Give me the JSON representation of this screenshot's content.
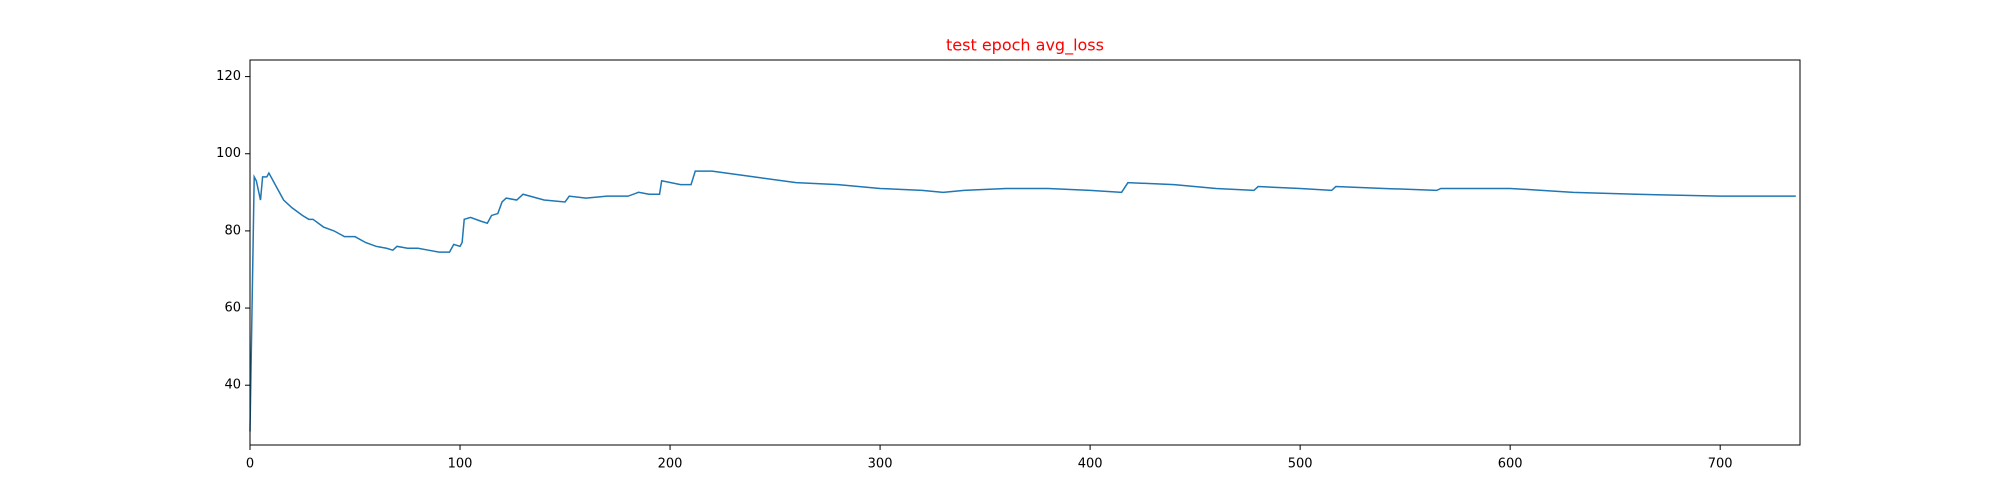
{
  "chart_data": {
    "type": "line",
    "title": "test epoch avg_loss",
    "title_color": "#ff0000",
    "x": [
      0,
      2,
      3,
      5,
      6,
      8,
      9,
      12,
      16,
      20,
      25,
      28,
      30,
      35,
      40,
      45,
      50,
      55,
      60,
      65,
      68,
      70,
      75,
      80,
      85,
      90,
      95,
      97,
      100,
      101,
      102,
      105,
      110,
      113,
      115,
      118,
      120,
      122,
      127,
      130,
      140,
      150,
      152,
      160,
      170,
      180,
      185,
      190,
      195,
      196,
      205,
      210,
      212,
      220,
      240,
      260,
      280,
      300,
      320,
      330,
      340,
      360,
      380,
      400,
      415,
      418,
      440,
      460,
      478,
      480,
      500,
      515,
      517,
      540,
      565,
      567,
      600,
      630,
      660,
      700,
      736
    ],
    "series": [
      {
        "color": "#1f77b4",
        "values": [
          28,
          94,
          93,
          88,
          94,
          94,
          95,
          92,
          88,
          86,
          84,
          83,
          83,
          81,
          80,
          78.5,
          78.5,
          77,
          76,
          75.5,
          75,
          76,
          75.5,
          75.5,
          75,
          74.5,
          74.5,
          76.5,
          76,
          77,
          83,
          83.5,
          82.5,
          82,
          84,
          84.5,
          87.5,
          88.5,
          88,
          89.5,
          88,
          87.5,
          89,
          88.5,
          89,
          89,
          90,
          89.5,
          89.5,
          93,
          92,
          92,
          95.5,
          95.5,
          94,
          92.5,
          92,
          91,
          90.5,
          90,
          90.5,
          91,
          91,
          90.5,
          90,
          92.5,
          92,
          91,
          90.5,
          91.5,
          91,
          90.5,
          91.5,
          91,
          90.5,
          91,
          91,
          90,
          89.5,
          89,
          89
        ]
      }
    ],
    "xlim": [
      0,
      738
    ],
    "ylim": [
      24.5,
      124.3
    ],
    "xticks": [
      0,
      100,
      200,
      300,
      400,
      500,
      600,
      700
    ],
    "yticks": [
      40,
      60,
      80,
      100,
      120
    ]
  }
}
